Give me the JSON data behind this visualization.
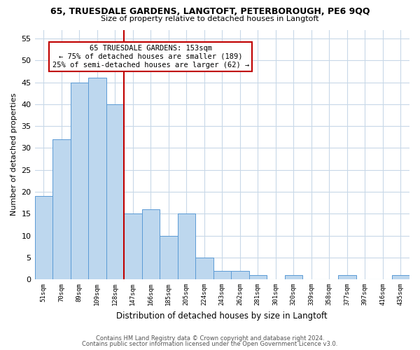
{
  "title": "65, TRUESDALE GARDENS, LANGTOFT, PETERBOROUGH, PE6 9QQ",
  "subtitle": "Size of property relative to detached houses in Langtoft",
  "xlabel": "Distribution of detached houses by size in Langtoft",
  "ylabel": "Number of detached properties",
  "bin_labels": [
    "51sqm",
    "70sqm",
    "89sqm",
    "109sqm",
    "128sqm",
    "147sqm",
    "166sqm",
    "185sqm",
    "205sqm",
    "224sqm",
    "243sqm",
    "262sqm",
    "281sqm",
    "301sqm",
    "320sqm",
    "339sqm",
    "358sqm",
    "377sqm",
    "397sqm",
    "416sqm",
    "435sqm"
  ],
  "bar_values": [
    19,
    32,
    45,
    46,
    40,
    15,
    16,
    10,
    15,
    5,
    2,
    2,
    1,
    0,
    1,
    0,
    0,
    1,
    0,
    0,
    1
  ],
  "bar_color": "#bdd7ee",
  "bar_edge_color": "#5b9bd5",
  "vline_x_index": 5,
  "vline_color": "#c00000",
  "ylim": [
    0,
    57
  ],
  "yticks": [
    0,
    5,
    10,
    15,
    20,
    25,
    30,
    35,
    40,
    45,
    50,
    55
  ],
  "annotation_title": "65 TRUESDALE GARDENS: 153sqm",
  "annotation_line1": "← 75% of detached houses are smaller (189)",
  "annotation_line2": "25% of semi-detached houses are larger (62) →",
  "annotation_box_color": "#ffffff",
  "annotation_box_edge": "#c00000",
  "footer1": "Contains HM Land Registry data © Crown copyright and database right 2024.",
  "footer2": "Contains public sector information licensed under the Open Government Licence v3.0.",
  "bg_color": "#ffffff",
  "grid_color": "#c8d8e8"
}
